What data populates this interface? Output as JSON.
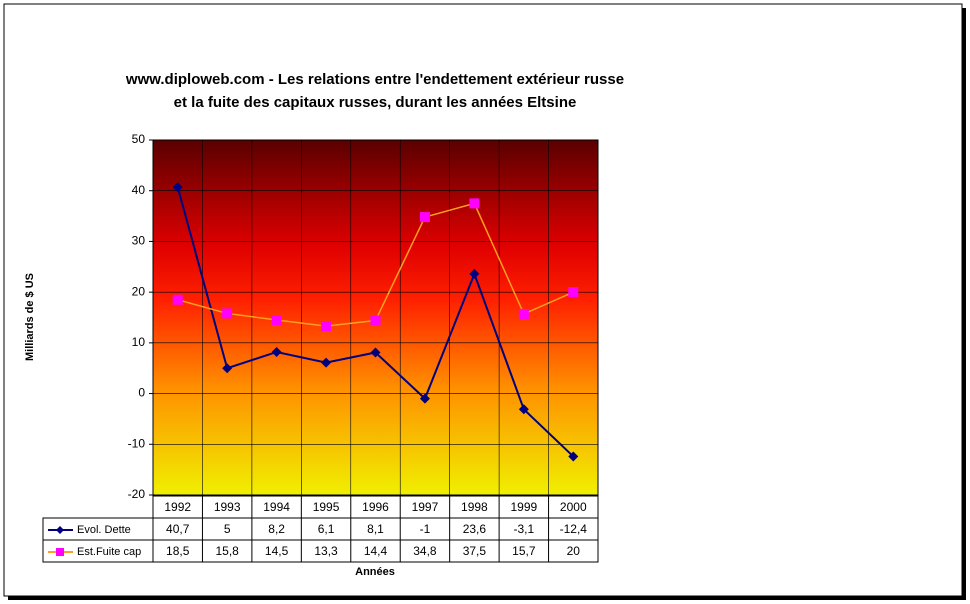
{
  "chart_data": {
    "type": "line",
    "title": "www.diploweb.com - Les relations entre l'endettement extérieur russe",
    "subtitle": "et la fuite des capitaux russes, durant les années Eltsine",
    "x_label": "Années",
    "y_label": "Milliards de $ US",
    "categories": [
      "1992",
      "1993",
      "1994",
      "1995",
      "1996",
      "1997",
      "1998",
      "1999",
      "2000"
    ],
    "series": [
      {
        "name": "Evol. Dette",
        "color": "#000080",
        "marker_color": "#000080",
        "marker": "diamond",
        "values": [
          40.7,
          5,
          8.2,
          6.1,
          8.1,
          -1,
          23.6,
          -3.1,
          -12.4
        ],
        "value_labels": [
          "40,7",
          "5",
          "8,2",
          "6,1",
          "8,1",
          "-1",
          "23,6",
          "-3,1",
          "-12,4"
        ]
      },
      {
        "name": "Est.Fuite cap",
        "color": "#ffa020",
        "marker_color": "#ff00ff",
        "marker": "square",
        "values": [
          18.5,
          15.8,
          14.5,
          13.3,
          14.4,
          34.8,
          37.5,
          15.7,
          20
        ],
        "value_labels": [
          "18,5",
          "15,8",
          "14,5",
          "13,3",
          "14,4",
          "34,8",
          "37,5",
          "15,7",
          "20"
        ]
      }
    ],
    "ylim": [
      -20,
      50
    ],
    "yticks": [
      -20,
      -10,
      0,
      10,
      20,
      30,
      40,
      50
    ],
    "grid": true
  }
}
